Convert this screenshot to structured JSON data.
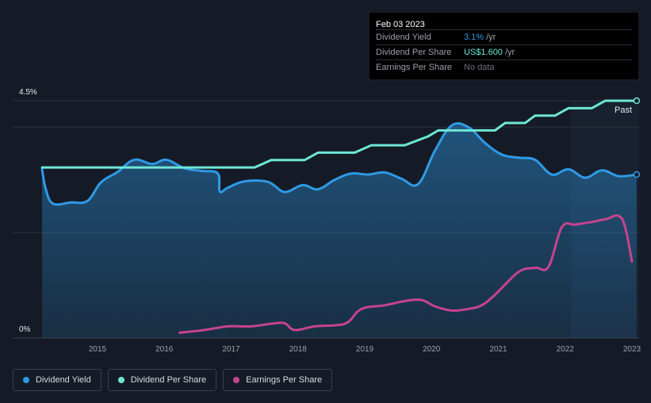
{
  "tooltip": {
    "date": "Feb 03 2023",
    "rows": [
      {
        "label": "Dividend Yield",
        "value": "3.1%",
        "unit": "/yr",
        "color": "#2e9ae6"
      },
      {
        "label": "Dividend Per Share",
        "value": "US$1.600",
        "unit": "/yr",
        "color": "#6ee7d6"
      },
      {
        "label": "Earnings Per Share",
        "value": "No data",
        "unit": "",
        "color": "#6b7078"
      }
    ]
  },
  "legend": [
    {
      "label": "Dividend Yield",
      "color": "#2e9ae6"
    },
    {
      "label": "Dividend Per Share",
      "color": "#6ee7d6"
    },
    {
      "label": "Earnings Per Share",
      "color": "#c7438f"
    }
  ],
  "past_label": "Past",
  "chart_data": {
    "type": "line",
    "title": "",
    "xlabel": "",
    "ylabel": "",
    "x_ticks": [
      "2015",
      "2016",
      "2017",
      "2018",
      "2019",
      "2020",
      "2021",
      "2022",
      "2023"
    ],
    "y_tick_labels": [
      "4.5%",
      "0%"
    ],
    "ylim": [
      0,
      4.5
    ],
    "xlim": [
      2014.1,
      2023.1
    ],
    "series": [
      {
        "name": "Dividend Yield",
        "color": "#2e9ae6",
        "x": [
          2014.17,
          2014.22,
          2014.33,
          2014.6,
          2014.85,
          2015.05,
          2015.3,
          2015.55,
          2015.82,
          2016.03,
          2016.3,
          2016.55,
          2016.8,
          2016.83,
          2016.95,
          2017.2,
          2017.55,
          2017.8,
          2018.07,
          2018.3,
          2018.55,
          2018.8,
          2019.05,
          2019.3,
          2019.55,
          2019.8,
          2020.05,
          2020.3,
          2020.55,
          2020.8,
          2021.05,
          2021.3,
          2021.55,
          2021.8,
          2022.05,
          2022.3,
          2022.55,
          2022.8,
          2023.07
        ],
        "values": [
          3.2,
          2.85,
          2.55,
          2.57,
          2.6,
          2.95,
          3.15,
          3.38,
          3.3,
          3.38,
          3.22,
          3.17,
          3.12,
          2.78,
          2.85,
          2.97,
          2.96,
          2.77,
          2.9,
          2.82,
          3.0,
          3.12,
          3.1,
          3.14,
          3.02,
          2.92,
          3.55,
          4.03,
          4.0,
          3.7,
          3.48,
          3.42,
          3.38,
          3.1,
          3.2,
          3.04,
          3.18,
          3.07,
          3.1
        ]
      },
      {
        "name": "Dividend Per Share",
        "color": "#6ee7d6",
        "x": [
          2014.17,
          2017.35,
          2017.6,
          2018.1,
          2018.3,
          2018.85,
          2019.1,
          2019.6,
          2019.95,
          2020.1,
          2020.95,
          2021.1,
          2021.4,
          2021.55,
          2021.85,
          2022.05,
          2022.4,
          2022.6,
          2023.07
        ],
        "values": [
          1.15,
          1.15,
          1.2,
          1.2,
          1.25,
          1.25,
          1.3,
          1.3,
          1.36,
          1.4,
          1.4,
          1.45,
          1.45,
          1.5,
          1.5,
          1.55,
          1.55,
          1.6,
          1.6
        ]
      },
      {
        "name": "Earnings Per Share",
        "color": "#c7438f",
        "x": [
          2016.23,
          2016.6,
          2016.95,
          2017.3,
          2017.6,
          2017.8,
          2017.95,
          2018.25,
          2018.55,
          2018.75,
          2018.95,
          2019.3,
          2019.6,
          2019.85,
          2020.05,
          2020.3,
          2020.55,
          2020.75,
          2020.95,
          2021.3,
          2021.55,
          2021.75,
          2021.95,
          2022.15,
          2022.4,
          2022.6,
          2022.85,
          2023.0
        ],
        "values": [
          0.1,
          0.15,
          0.22,
          0.22,
          0.27,
          0.28,
          0.15,
          0.22,
          0.24,
          0.3,
          0.55,
          0.62,
          0.7,
          0.72,
          0.6,
          0.52,
          0.55,
          0.62,
          0.82,
          1.25,
          1.33,
          1.35,
          2.1,
          2.15,
          2.2,
          2.25,
          2.26,
          1.45
        ]
      }
    ]
  }
}
